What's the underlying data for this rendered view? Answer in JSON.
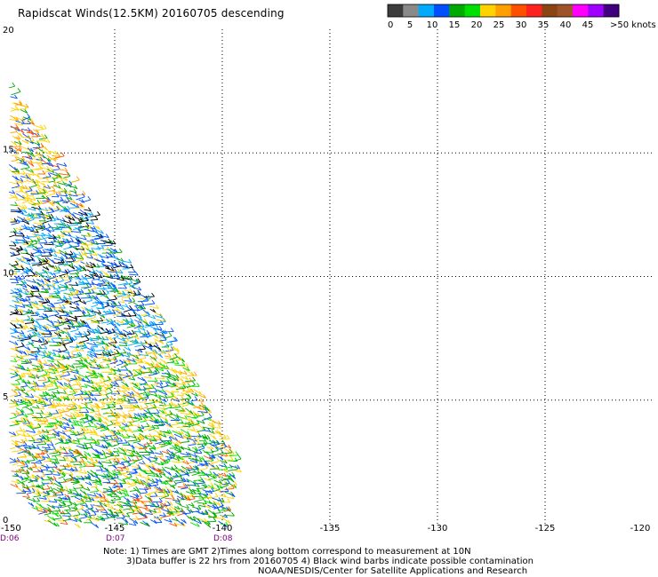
{
  "chart_data": {
    "type": "scatter",
    "title": "Rapidscat Winds(12.5KM) 20160705 descending",
    "x_ticks": [
      "-150",
      "-145",
      "-140",
      "-135",
      "-130",
      "-125",
      "-120"
    ],
    "y_ticks": [
      "0",
      "5",
      "10",
      "15",
      "20"
    ],
    "xlim": [
      -150,
      -120
    ],
    "ylim": [
      0,
      20
    ],
    "grid": true,
    "time_labels": [
      {
        "x": -150,
        "label": "D:06"
      },
      {
        "x": -145,
        "label": "D:07"
      },
      {
        "x": -140,
        "label": "D:08"
      }
    ],
    "colorbar": {
      "units": ">50 knots",
      "tick_labels": [
        "0",
        "5",
        "10",
        "15",
        "20",
        "25",
        "30",
        "35",
        "40",
        "45",
        ">50 knots"
      ],
      "colors": [
        "#3c3c3c",
        "#8a8a8a",
        "#00aaff",
        "#0050ff",
        "#00aa00",
        "#00e000",
        "#ffd200",
        "#ffa000",
        "#ff5000",
        "#ff2020",
        "#8b4513",
        "#a0522d",
        "#ff00ff",
        "#a000ff",
        "#400080"
      ]
    },
    "swath": {
      "description_free": true,
      "lon_lat_polygon": [
        [
          -150,
          17.9
        ],
        [
          -146.0,
          12.3
        ],
        [
          -144.2,
          10.0
        ],
        [
          -142.5,
          7.6
        ],
        [
          -140.8,
          4.7
        ],
        [
          -139.4,
          2.4
        ],
        [
          -140.0,
          0.0
        ],
        [
          -148.2,
          0.0
        ],
        [
          -150,
          1.6
        ]
      ]
    },
    "notes": [
      "Note: 1) Times are GMT 2)Times along bottom correspond to measurement at 10N",
      "3)Data buffer is 22 hrs from 20160705 4) Black wind barbs indicate possible contamination",
      "NOAA/NESDIS/Center for Satellite Applications and Research"
    ]
  }
}
